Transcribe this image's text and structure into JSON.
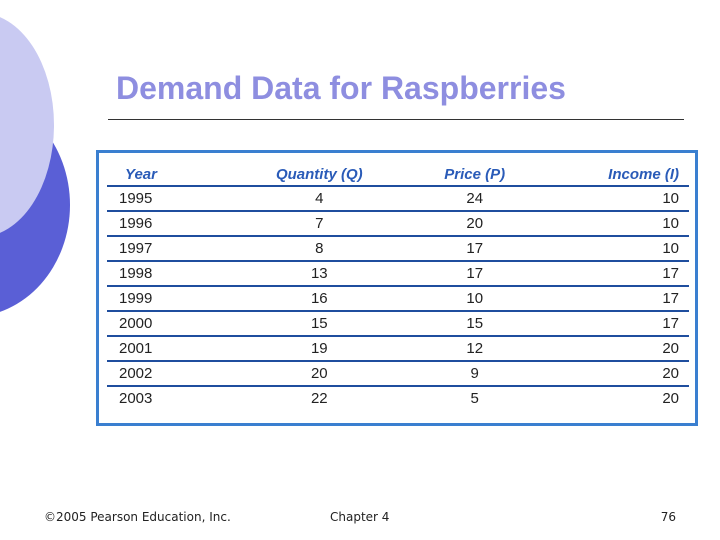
{
  "title": "Demand Data for Raspberries",
  "table": {
    "headers": [
      "Year",
      "Quantity (Q)",
      "Price (P)",
      "Income (I)"
    ],
    "rows": [
      [
        "1995",
        "4",
        "24",
        "10"
      ],
      [
        "1996",
        "7",
        "20",
        "10"
      ],
      [
        "1997",
        "8",
        "17",
        "10"
      ],
      [
        "1998",
        "13",
        "17",
        "17"
      ],
      [
        "1999",
        "16",
        "10",
        "17"
      ],
      [
        "2000",
        "15",
        "15",
        "17"
      ],
      [
        "2001",
        "19",
        "12",
        "20"
      ],
      [
        "2002",
        "20",
        "9",
        "20"
      ],
      [
        "2003",
        "22",
        "5",
        "20"
      ]
    ]
  },
  "footer": {
    "copyright": "©2005 Pearson Education, Inc.",
    "chapter": "Chapter 4",
    "page": "76"
  },
  "colors": {
    "title": "#8e8ee0",
    "table_border": "#3a7fd0",
    "header_text": "#2a5bb8",
    "rule": "#1f4e9e"
  }
}
